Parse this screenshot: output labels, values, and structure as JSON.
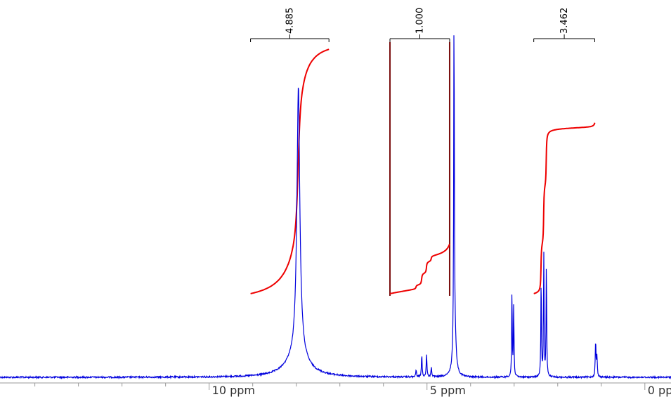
{
  "chart_data": {
    "type": "line",
    "title": "",
    "xlabel": "",
    "ylabel": "",
    "x_axis": {
      "unit": "ppm",
      "range": [
        14.8,
        -0.6
      ],
      "reversed": true,
      "labeled_ticks": [
        {
          "value": 10,
          "label": "10 ppm"
        },
        {
          "value": 5,
          "label": "5 ppm"
        },
        {
          "value": 0,
          "label": "0 ppm"
        }
      ],
      "minor_ticks": [
        14,
        13,
        12,
        11,
        9,
        8,
        7,
        6,
        4,
        3,
        2,
        1
      ]
    },
    "grid": false,
    "spectrum_color": "#0000dd",
    "integral_color": "#ee0000",
    "region_box_color": "#7a0f0f",
    "peaks": [
      {
        "ppm": 7.95,
        "height": 0.5,
        "width": 0.03
      },
      {
        "ppm": 7.97,
        "height": 0.22,
        "width": 0.045
      },
      {
        "ppm": 7.93,
        "height": 0.14,
        "width": 0.06
      },
      {
        "ppm": 7.98,
        "height": 0.06,
        "width": 0.3
      },
      {
        "ppm": 5.25,
        "height": 0.022,
        "width": 0.01
      },
      {
        "ppm": 5.12,
        "height": 0.065,
        "width": 0.01
      },
      {
        "ppm": 5.01,
        "height": 0.068,
        "width": 0.01
      },
      {
        "ppm": 4.9,
        "height": 0.03,
        "width": 0.01
      },
      {
        "ppm": 4.38,
        "height": 0.99,
        "width": 0.008
      },
      {
        "ppm": 4.37,
        "height": 0.16,
        "width": 0.035
      },
      {
        "ppm": 3.05,
        "height": 0.26,
        "width": 0.008
      },
      {
        "ppm": 3.01,
        "height": 0.22,
        "width": 0.008
      },
      {
        "ppm": 2.38,
        "height": 0.3,
        "width": 0.008
      },
      {
        "ppm": 2.32,
        "height": 0.37,
        "width": 0.008
      },
      {
        "ppm": 2.26,
        "height": 0.34,
        "width": 0.008
      },
      {
        "ppm": 1.13,
        "height": 0.107,
        "width": 0.01
      },
      {
        "ppm": 1.1,
        "height": 0.06,
        "width": 0.01
      }
    ],
    "integrals": [
      {
        "value": "4.885",
        "from_ppm": 9.05,
        "to_ppm": 7.25,
        "start_level": 0.255,
        "end_level": 1.0,
        "boxed": false
      },
      {
        "value": "1.000",
        "from_ppm": 5.85,
        "to_ppm": 4.48,
        "start_level": 0.255,
        "end_level": 0.405,
        "boxed": true
      },
      {
        "value": "3.462",
        "from_ppm": 2.55,
        "to_ppm": 1.15,
        "start_level": 0.255,
        "end_level": 0.77,
        "boxed": false
      }
    ]
  }
}
